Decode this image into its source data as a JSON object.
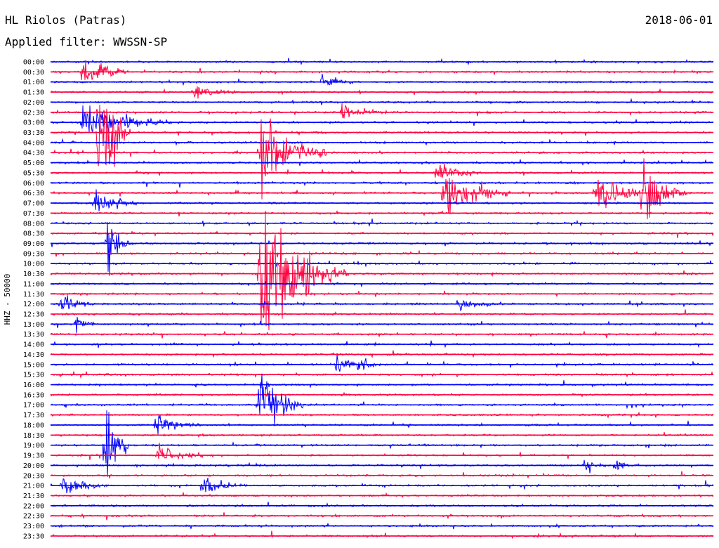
{
  "header": {
    "station": "HL Riolos (Patras)",
    "date": "2018-06-01",
    "filter": "Applied filter: WWSSN-SP"
  },
  "chart_data": {
    "type": "line",
    "title": "HL Riolos (Patras)",
    "date": "2018-06-01",
    "filter": "WWSSN-SP",
    "ylabel": "HHZ - 50000",
    "xlabel": "",
    "trace_colors": [
      "#0000ff",
      "#ff0040"
    ],
    "row_labels": [
      "00:00",
      "00:30",
      "01:00",
      "01:30",
      "02:00",
      "02:30",
      "03:00",
      "03:30",
      "04:00",
      "04:30",
      "05:00",
      "05:30",
      "06:00",
      "06:30",
      "07:00",
      "07:30",
      "08:00",
      "08:30",
      "09:00",
      "09:30",
      "10:00",
      "10:30",
      "11:00",
      "11:30",
      "12:00",
      "12:30",
      "13:00",
      "13:30",
      "14:00",
      "14:30",
      "15:00",
      "15:30",
      "16:00",
      "16:30",
      "17:00",
      "17:30",
      "18:00",
      "18:30",
      "19:00",
      "19:30",
      "20:00",
      "20:30",
      "21:00",
      "21:30",
      "22:00",
      "22:30",
      "23:00",
      "23:30"
    ],
    "row_duration_minutes": 30,
    "events": [
      {
        "row": "00:30",
        "minute": 1.5,
        "amplitude": 28,
        "duration_min": 2
      },
      {
        "row": "01:00",
        "minute": 12.3,
        "amplitude": 12,
        "duration_min": 1.5
      },
      {
        "row": "01:30",
        "minute": 6.5,
        "amplitude": 12,
        "duration_min": 2
      },
      {
        "row": "02:30",
        "minute": 13.2,
        "amplitude": 10,
        "duration_min": 2
      },
      {
        "row": "03:00",
        "minute": 1.5,
        "amplitude": 30,
        "duration_min": 4
      },
      {
        "row": "03:30",
        "minute": 2.2,
        "amplitude": 75,
        "duration_min": 1
      },
      {
        "row": "03:30",
        "minute": 2.6,
        "amplitude": 90,
        "duration_min": 1
      },
      {
        "row": "04:30",
        "minute": 9.5,
        "amplitude": 60,
        "duration_min": 3
      },
      {
        "row": "05:30",
        "minute": 17.5,
        "amplitude": 18,
        "duration_min": 2
      },
      {
        "row": "06:30",
        "minute": 17.8,
        "amplitude": 40,
        "duration_min": 3
      },
      {
        "row": "06:30",
        "minute": 24.7,
        "amplitude": 30,
        "duration_min": 3
      },
      {
        "row": "06:30",
        "minute": 26.8,
        "amplitude": 60,
        "duration_min": 2
      },
      {
        "row": "07:00",
        "minute": 2.0,
        "amplitude": 18,
        "duration_min": 2
      },
      {
        "row": "09:00",
        "minute": 2.6,
        "amplitude": 60,
        "duration_min": 1
      },
      {
        "row": "10:30",
        "minute": 9.5,
        "amplitude": 110,
        "duration_min": 4
      },
      {
        "row": "12:00",
        "minute": 0.5,
        "amplitude": 16,
        "duration_min": 1.5
      },
      {
        "row": "12:00",
        "minute": 18.5,
        "amplitude": 10,
        "duration_min": 2
      },
      {
        "row": "13:00",
        "minute": 1.2,
        "amplitude": 10,
        "duration_min": 1
      },
      {
        "row": "15:00",
        "minute": 13.0,
        "amplitude": 18,
        "duration_min": 1
      },
      {
        "row": "15:00",
        "minute": 14.0,
        "amplitude": 14,
        "duration_min": 1
      },
      {
        "row": "17:00",
        "minute": 9.5,
        "amplitude": 60,
        "duration_min": 2
      },
      {
        "row": "18:00",
        "minute": 4.8,
        "amplitude": 14,
        "duration_min": 2
      },
      {
        "row": "19:00",
        "minute": 2.5,
        "amplitude": 110,
        "duration_min": 1
      },
      {
        "row": "19:30",
        "minute": 4.9,
        "amplitude": 18,
        "duration_min": 2
      },
      {
        "row": "20:00",
        "minute": 24.2,
        "amplitude": 8,
        "duration_min": 1
      },
      {
        "row": "20:00",
        "minute": 25.6,
        "amplitude": 10,
        "duration_min": 1
      },
      {
        "row": "21:00",
        "minute": 0.6,
        "amplitude": 16,
        "duration_min": 2
      },
      {
        "row": "21:00",
        "minute": 6.9,
        "amplitude": 16,
        "duration_min": 2
      }
    ]
  }
}
